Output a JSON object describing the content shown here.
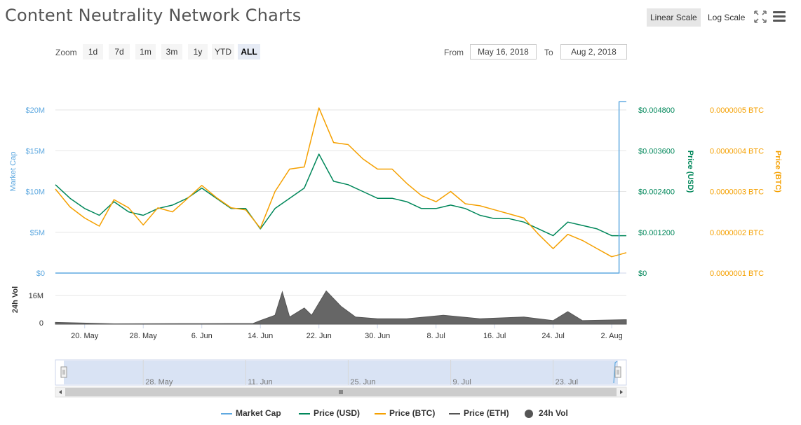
{
  "header": {
    "title": "Content Neutrality Network Charts",
    "linear_scale_label": "Linear Scale",
    "log_scale_label": "Log Scale"
  },
  "zoom": {
    "label": "Zoom",
    "buttons": [
      "1d",
      "7d",
      "1m",
      "3m",
      "1y",
      "YTD",
      "ALL"
    ],
    "active": "ALL"
  },
  "range": {
    "from_label": "From",
    "from_value": "May 16, 2018",
    "to_label": "To",
    "to_value": "Aug 2, 2018"
  },
  "legend": [
    {
      "name": "Market Cap",
      "color": "#5fa9e0"
    },
    {
      "name": "Price (USD)",
      "color": "#00875a"
    },
    {
      "name": "Price (BTC)",
      "color": "#f5a000"
    },
    {
      "name": "Price (ETH)",
      "color": "#555555"
    },
    {
      "name": "24h Vol",
      "color": "#555555"
    }
  ],
  "chart_data": {
    "type": "line",
    "x_range": [
      "2018-05-16",
      "2018-08-02"
    ],
    "x_ticks": [
      "20. May",
      "28. May",
      "6. Jun",
      "14. Jun",
      "22. Jun",
      "30. Jun",
      "8. Jul",
      "16. Jul",
      "24. Jul",
      "2. Aug"
    ],
    "axes": {
      "market_cap": {
        "label": "Market Cap",
        "ticks": [
          "$0",
          "$5M",
          "$10M",
          "$15M",
          "$20M"
        ],
        "range": [
          0,
          20000000
        ],
        "color": "#5fa9e0"
      },
      "price_usd": {
        "label": "Price (USD)",
        "ticks": [
          "$0",
          "$0.001200",
          "$0.002400",
          "$0.003600",
          "$0.004800"
        ],
        "range": [
          0,
          0.0048
        ],
        "color": "#00875a"
      },
      "price_btc": {
        "label": "Price (BTC)",
        "ticks": [
          "0.0000001 BTC",
          "0.0000002 BTC",
          "0.0000003 BTC",
          "0.0000004 BTC",
          "0.0000005 BTC"
        ],
        "range": [
          1e-07,
          5e-07
        ],
        "color": "#f5a000"
      },
      "volume": {
        "label": "24h Vol",
        "ticks": [
          "0",
          "16M"
        ],
        "range": [
          0,
          16000000
        ]
      }
    },
    "series": [
      {
        "name": "Price (USD)",
        "axis": "price_usd",
        "points": [
          [
            "2018-05-16",
            0.0026
          ],
          [
            "2018-05-18",
            0.0022
          ],
          [
            "2018-05-20",
            0.0019
          ],
          [
            "2018-05-22",
            0.0017
          ],
          [
            "2018-05-24",
            0.0021
          ],
          [
            "2018-05-26",
            0.0018
          ],
          [
            "2018-05-28",
            0.0017
          ],
          [
            "2018-05-30",
            0.0019
          ],
          [
            "2018-06-01",
            0.002
          ],
          [
            "2018-06-03",
            0.0022
          ],
          [
            "2018-06-05",
            0.0025
          ],
          [
            "2018-06-07",
            0.0022
          ],
          [
            "2018-06-09",
            0.0019
          ],
          [
            "2018-06-11",
            0.0019
          ],
          [
            "2018-06-13",
            0.0013
          ],
          [
            "2018-06-15",
            0.0019
          ],
          [
            "2018-06-17",
            0.0022
          ],
          [
            "2018-06-19",
            0.0025
          ],
          [
            "2018-06-21",
            0.0035
          ],
          [
            "2018-06-23",
            0.0027
          ],
          [
            "2018-06-25",
            0.0026
          ],
          [
            "2018-06-27",
            0.0024
          ],
          [
            "2018-06-29",
            0.0022
          ],
          [
            "2018-07-01",
            0.0022
          ],
          [
            "2018-07-03",
            0.0021
          ],
          [
            "2018-07-05",
            0.0019
          ],
          [
            "2018-07-07",
            0.0019
          ],
          [
            "2018-07-09",
            0.002
          ],
          [
            "2018-07-11",
            0.0019
          ],
          [
            "2018-07-13",
            0.0017
          ],
          [
            "2018-07-15",
            0.0016
          ],
          [
            "2018-07-17",
            0.0016
          ],
          [
            "2018-07-19",
            0.0015
          ],
          [
            "2018-07-21",
            0.0013
          ],
          [
            "2018-07-23",
            0.0011
          ],
          [
            "2018-07-25",
            0.0015
          ],
          [
            "2018-07-27",
            0.0014
          ],
          [
            "2018-07-29",
            0.0013
          ],
          [
            "2018-07-31",
            0.0011
          ],
          [
            "2018-08-02",
            0.0011
          ]
        ]
      },
      {
        "name": "Price (BTC)",
        "axis": "price_btc",
        "points": [
          [
            "2018-05-16",
            3.06e-07
          ],
          [
            "2018-05-18",
            2.62e-07
          ],
          [
            "2018-05-20",
            2.35e-07
          ],
          [
            "2018-05-22",
            2.15e-07
          ],
          [
            "2018-05-24",
            2.8e-07
          ],
          [
            "2018-05-26",
            2.6e-07
          ],
          [
            "2018-05-28",
            2.18e-07
          ],
          [
            "2018-05-30",
            2.6e-07
          ],
          [
            "2018-06-01",
            2.5e-07
          ],
          [
            "2018-06-03",
            2.82e-07
          ],
          [
            "2018-06-05",
            3.15e-07
          ],
          [
            "2018-06-07",
            2.85e-07
          ],
          [
            "2018-06-09",
            2.6e-07
          ],
          [
            "2018-06-11",
            2.55e-07
          ],
          [
            "2018-06-13",
            2.1e-07
          ],
          [
            "2018-06-15",
            3e-07
          ],
          [
            "2018-06-17",
            3.55e-07
          ],
          [
            "2018-06-19",
            3.6e-07
          ],
          [
            "2018-06-21",
            5.05e-07
          ],
          [
            "2018-06-23",
            4.2e-07
          ],
          [
            "2018-06-25",
            4.15e-07
          ],
          [
            "2018-06-27",
            3.8e-07
          ],
          [
            "2018-06-29",
            3.55e-07
          ],
          [
            "2018-07-01",
            3.55e-07
          ],
          [
            "2018-07-03",
            3.2e-07
          ],
          [
            "2018-07-05",
            2.9e-07
          ],
          [
            "2018-07-07",
            2.75e-07
          ],
          [
            "2018-07-09",
            3e-07
          ],
          [
            "2018-07-11",
            2.7e-07
          ],
          [
            "2018-07-13",
            2.65e-07
          ],
          [
            "2018-07-15",
            2.55e-07
          ],
          [
            "2018-07-17",
            2.45e-07
          ],
          [
            "2018-07-19",
            2.35e-07
          ],
          [
            "2018-07-21",
            1.95e-07
          ],
          [
            "2018-07-23",
            1.6e-07
          ],
          [
            "2018-07-25",
            1.95e-07
          ],
          [
            "2018-07-27",
            1.8e-07
          ],
          [
            "2018-07-29",
            1.6e-07
          ],
          [
            "2018-07-31",
            1.4e-07
          ],
          [
            "2018-08-02",
            1.5e-07
          ]
        ]
      },
      {
        "name": "Market Cap",
        "axis": "market_cap",
        "points": [
          [
            "2018-05-16",
            0
          ],
          [
            "2018-08-01",
            0
          ],
          [
            "2018-08-01",
            21000000
          ],
          [
            "2018-08-02",
            21000000
          ]
        ]
      },
      {
        "name": "24h Vol",
        "axis": "volume",
        "type": "area",
        "points": [
          [
            "2018-05-16",
            1000000
          ],
          [
            "2018-05-24",
            200000
          ],
          [
            "2018-06-05",
            300000
          ],
          [
            "2018-06-12",
            400000
          ],
          [
            "2018-06-13",
            2000000
          ],
          [
            "2018-06-15",
            5000000
          ],
          [
            "2018-06-16",
            18000000
          ],
          [
            "2018-06-17",
            4000000
          ],
          [
            "2018-06-19",
            9000000
          ],
          [
            "2018-06-20",
            5000000
          ],
          [
            "2018-06-22",
            18500000
          ],
          [
            "2018-06-24",
            10000000
          ],
          [
            "2018-06-26",
            4000000
          ],
          [
            "2018-06-29",
            3000000
          ],
          [
            "2018-07-03",
            3000000
          ],
          [
            "2018-07-08",
            5000000
          ],
          [
            "2018-07-13",
            3000000
          ],
          [
            "2018-07-19",
            4000000
          ],
          [
            "2018-07-23",
            2000000
          ],
          [
            "2018-07-25",
            7000000
          ],
          [
            "2018-07-27",
            2000000
          ],
          [
            "2018-08-02",
            2500000
          ]
        ]
      }
    ],
    "navigator": {
      "ticks": [
        "28. May",
        "11. Jun",
        "25. Jun",
        "9. Jul",
        "23. Jul"
      ]
    }
  }
}
